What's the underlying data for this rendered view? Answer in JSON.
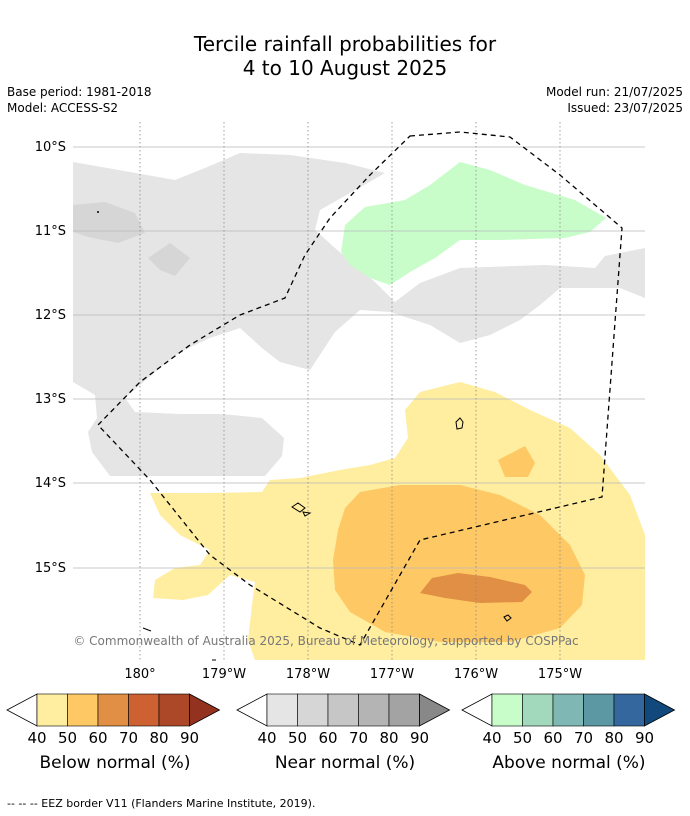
{
  "title_line1": "Tercile rainfall probabilities for",
  "title_line2": "4 to 10 August 2025",
  "base_period": "Base period: 1981-2018",
  "model": "Model: ACCESS-S2",
  "model_run": "Model run: 21/07/2025",
  "issued": "Issued: 23/07/2025",
  "attribution": "© Commonwealth of Australia 2025, Bureau of Meteorology, supported by COSPPac",
  "lat_labels": [
    "10°S",
    "11°S",
    "12°S",
    "13°S",
    "14°S",
    "15°S"
  ],
  "lon_labels": [
    "180°",
    "179°W",
    "178°W",
    "177°W",
    "176°W",
    "175°W"
  ],
  "colorbars": [
    {
      "name": "Below normal (%)",
      "ticks": [
        "40",
        "50",
        "60",
        "70",
        "80",
        "90"
      ],
      "colors": [
        "#ffffff",
        "#ffeda0",
        "#fec965",
        "#e08f44",
        "#cd6131",
        "#ac4727",
        "#93321f"
      ]
    },
    {
      "name": "Near normal (%)",
      "ticks": [
        "40",
        "50",
        "60",
        "70",
        "80",
        "90"
      ],
      "colors": [
        "#ffffff",
        "#e5e5e5",
        "#d6d6d6",
        "#c6c6c6",
        "#b4b4b4",
        "#a3a3a3",
        "#888888"
      ]
    },
    {
      "name": "Above normal (%)",
      "ticks": [
        "40",
        "50",
        "60",
        "70",
        "80",
        "90"
      ],
      "colors": [
        "#ffffff",
        "#c8fdca",
        "#a2d9bc",
        "#7fb7b4",
        "#5b98a3",
        "#33679d",
        "#12497c"
      ]
    }
  ],
  "footer": "--  --  -- EEZ border V11 (Flanders Marine Institute, 2019)."
}
